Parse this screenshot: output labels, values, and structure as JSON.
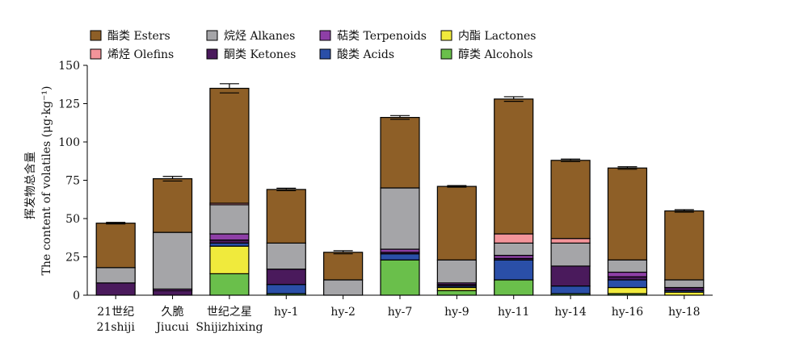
{
  "chart_data": {
    "type": "bar",
    "stacked": true,
    "ylabel_cn": "挥发物总含量",
    "ylabel_en": "The content of volatiles (μg·kg⁻¹)",
    "ylim": [
      0,
      150
    ],
    "yticks": [
      0,
      25,
      50,
      75,
      100,
      125,
      150
    ],
    "legend_position": "top",
    "categories": [
      {
        "cn": "21世纪",
        "en": "21shiji"
      },
      {
        "cn": "久脆",
        "en": "Jiucui"
      },
      {
        "cn": "世纪之星",
        "en": "Shijizhixing"
      },
      {
        "cn": "hy-1",
        "en": ""
      },
      {
        "cn": "hy-2",
        "en": ""
      },
      {
        "cn": "hy-7",
        "en": ""
      },
      {
        "cn": "hy-9",
        "en": ""
      },
      {
        "cn": "hy-11",
        "en": ""
      },
      {
        "cn": "hy-14",
        "en": ""
      },
      {
        "cn": "hy-16",
        "en": ""
      },
      {
        "cn": "hy-18",
        "en": ""
      }
    ],
    "series": [
      {
        "name": "醇类 Alcohols",
        "color": "#6abf4b",
        "values": [
          0,
          0,
          14,
          1,
          0,
          23,
          3,
          10,
          1,
          1,
          0
        ]
      },
      {
        "name": "内酯 Lactones",
        "color": "#f0ea3c",
        "values": [
          0,
          0,
          18,
          0,
          0,
          0,
          2,
          0,
          0,
          4,
          2
        ]
      },
      {
        "name": "酸类 Acids",
        "color": "#2a4fa8",
        "values": [
          0,
          0,
          2,
          6,
          0,
          4,
          1,
          13,
          5,
          5,
          1
        ]
      },
      {
        "name": "酮类 Ketones",
        "color": "#4a1a5c",
        "values": [
          8,
          3,
          2,
          10,
          0,
          1,
          1,
          1,
          13,
          2,
          2
        ]
      },
      {
        "name": "萜类 Terpenoids",
        "color": "#8e3fa6",
        "values": [
          0,
          1,
          4,
          0,
          0,
          2,
          1,
          2,
          0,
          3,
          0
        ]
      },
      {
        "name": "烷烃 Alkanes",
        "color": "#a5a5a8",
        "values": [
          10,
          37,
          19,
          17,
          10,
          40,
          15,
          8,
          15,
          8,
          5
        ]
      },
      {
        "name": "烯烃 Olefins",
        "color": "#f3949a",
        "values": [
          0,
          0,
          1,
          0,
          0,
          0,
          0,
          6,
          3,
          0,
          0
        ]
      },
      {
        "name": "酯类 Esters",
        "color": "#8e5f27",
        "values": [
          29,
          35,
          75,
          35,
          18,
          46,
          48,
          88,
          51,
          60,
          45
        ]
      }
    ],
    "error": [
      0.5,
      1.5,
      3,
      0.8,
      1,
      1.2,
      0.5,
      1.5,
      0.8,
      0.8,
      0.8
    ],
    "legend_order": [
      "酯类 Esters",
      "烷烃 Alkanes",
      "萜类 Terpenoids",
      "内酯 Lactones",
      "烯烃 Olefins",
      "酮类 Ketones",
      "酸类 Acids",
      "醇类 Alcohols"
    ]
  }
}
